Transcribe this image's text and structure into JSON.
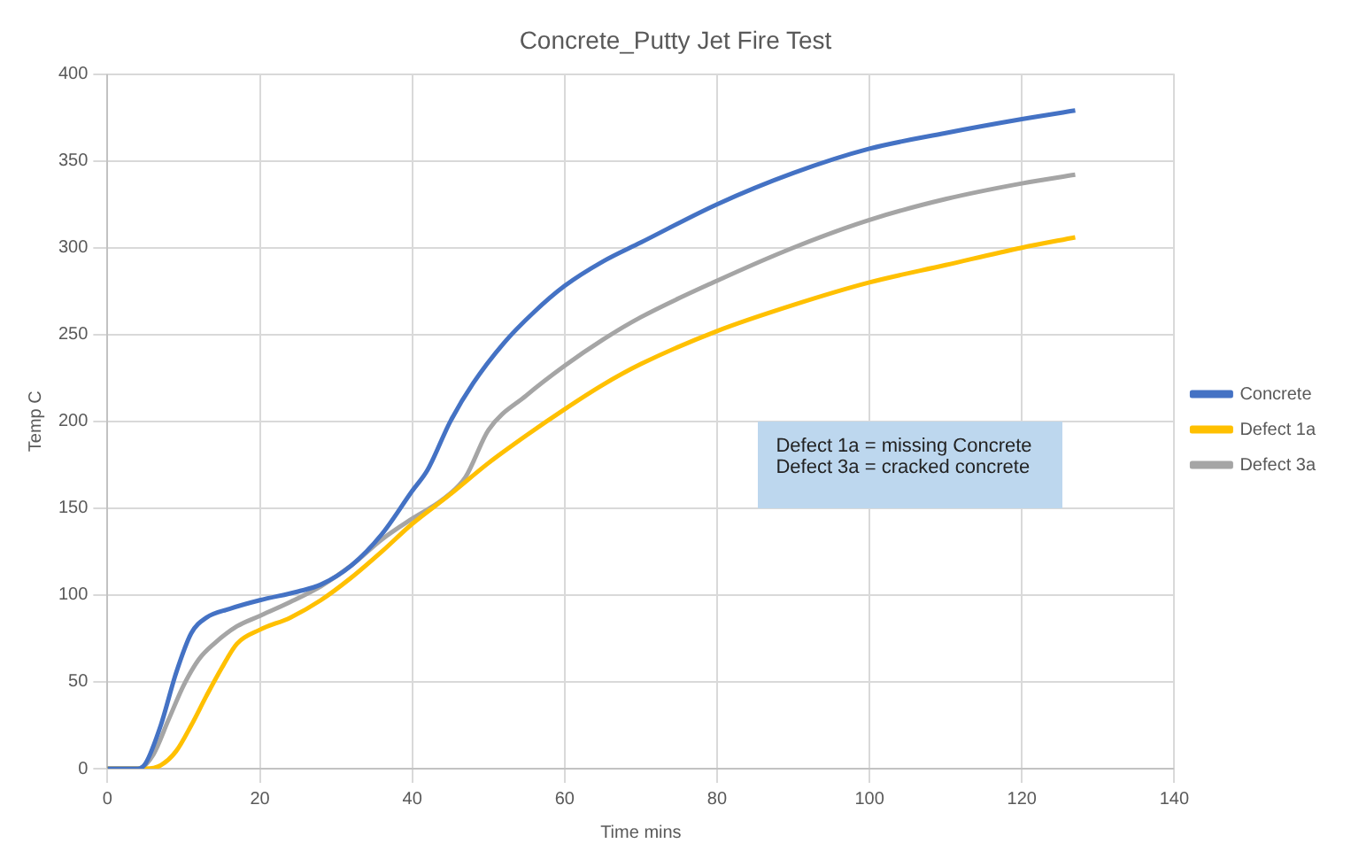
{
  "chart_data": {
    "type": "line",
    "title": "Concrete_Putty Jet Fire Test",
    "xlabel": "Time mins",
    "ylabel": "Temp C",
    "annotations": [
      "Defect 1a = missing Concrete\nDefect 3a = cracked concrete"
    ],
    "xlim": [
      0,
      140
    ],
    "xticks": [
      0,
      20,
      40,
      60,
      80,
      100,
      120,
      140
    ],
    "ylim": [
      0,
      400
    ],
    "yticks": [
      0,
      50,
      100,
      150,
      200,
      250,
      300,
      350,
      400
    ],
    "grid": true,
    "legend": "right",
    "marker": "none",
    "line_style": "solid",
    "series": [
      {
        "name": "Concrete",
        "color": "#4472c4",
        "x": [
          0,
          4,
          5,
          7,
          9,
          11,
          13,
          16,
          20,
          25,
          28,
          32,
          36,
          40,
          42,
          45,
          48,
          52,
          56,
          60,
          65,
          70,
          80,
          90,
          100,
          110,
          120,
          127
        ],
        "values": [
          0,
          0,
          3,
          25,
          55,
          78,
          87,
          92,
          97,
          102,
          106,
          117,
          135,
          160,
          172,
          200,
          222,
          245,
          263,
          278,
          292,
          303,
          325,
          343,
          357,
          366,
          374,
          379
        ]
      },
      {
        "name": "Defect 1a",
        "color": "#ffc000",
        "x": [
          0,
          5,
          7,
          9,
          11,
          13,
          15,
          17,
          20,
          24,
          28,
          32,
          36,
          40,
          45,
          50,
          55,
          60,
          65,
          70,
          80,
          90,
          100,
          110,
          120,
          127
        ],
        "values": [
          0,
          0,
          2,
          10,
          25,
          42,
          58,
          72,
          80,
          87,
          97,
          110,
          125,
          141,
          158,
          176,
          192,
          207,
          221,
          233,
          252,
          267,
          280,
          290,
          300,
          306
        ]
      },
      {
        "name": "Defect 3a",
        "color": "#a5a5a5",
        "x": [
          0,
          4,
          6,
          8,
          10,
          12,
          14,
          17,
          20,
          24,
          28,
          32,
          36,
          40,
          44,
          47,
          50,
          55,
          60,
          65,
          70,
          80,
          90,
          100,
          110,
          120,
          127
        ],
        "values": [
          0,
          0,
          8,
          28,
          48,
          63,
          72,
          82,
          88,
          96,
          105,
          117,
          132,
          144,
          155,
          168,
          195,
          215,
          232,
          247,
          260,
          281,
          300,
          316,
          328,
          337,
          342
        ]
      }
    ]
  }
}
